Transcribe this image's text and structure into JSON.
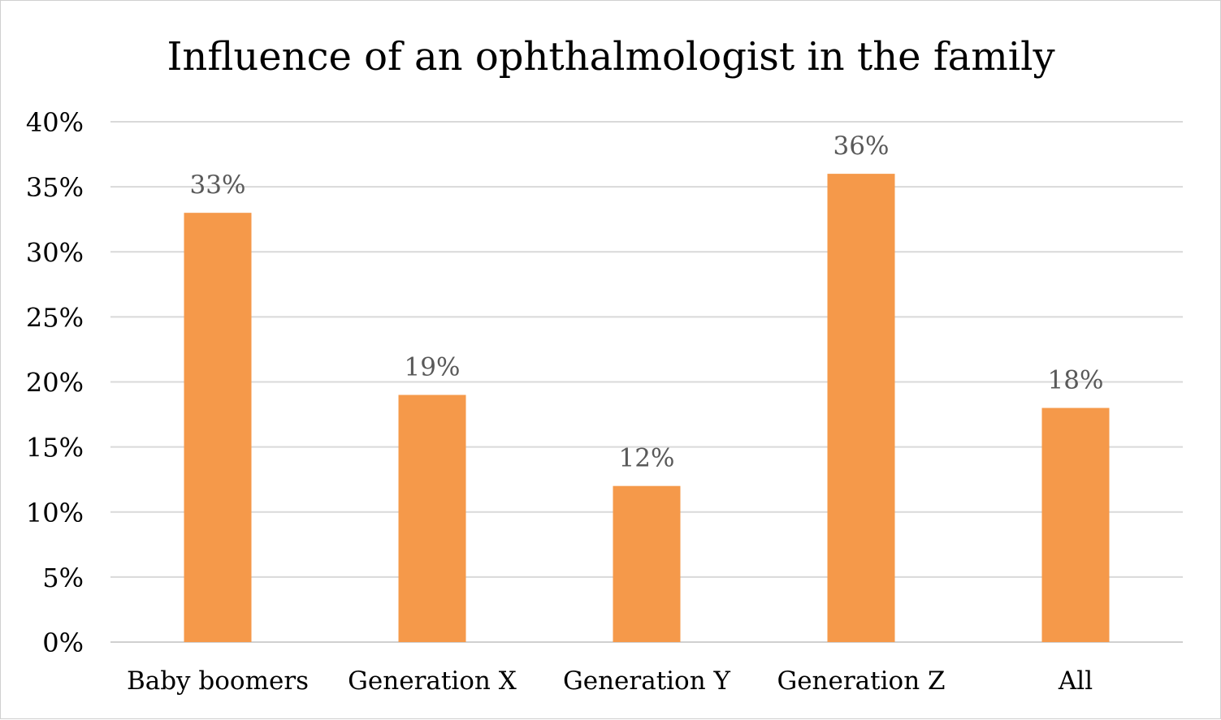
{
  "chart_data": {
    "type": "bar",
    "title": "Influence of an ophthalmologist in the family",
    "xlabel": "",
    "ylabel": "",
    "categories": [
      "Baby boomers",
      "Generation X",
      "Generation Y",
      "Generation Z",
      "All"
    ],
    "values": [
      33,
      19,
      12,
      36,
      18
    ],
    "data_labels": [
      "33%",
      "19%",
      "12%",
      "36%",
      "18%"
    ],
    "ylim": [
      0,
      40
    ],
    "y_ticks": [
      0,
      5,
      10,
      15,
      20,
      25,
      30,
      35,
      40
    ],
    "y_tick_labels": [
      "0%",
      "5%",
      "10%",
      "15%",
      "20%",
      "25%",
      "30%",
      "35%",
      "40%"
    ],
    "grid": true,
    "legend": "none",
    "colors": {
      "bar": "#F5994A",
      "grid": "#d9d9d9",
      "data_label": "#595959",
      "text": "#000000"
    }
  }
}
